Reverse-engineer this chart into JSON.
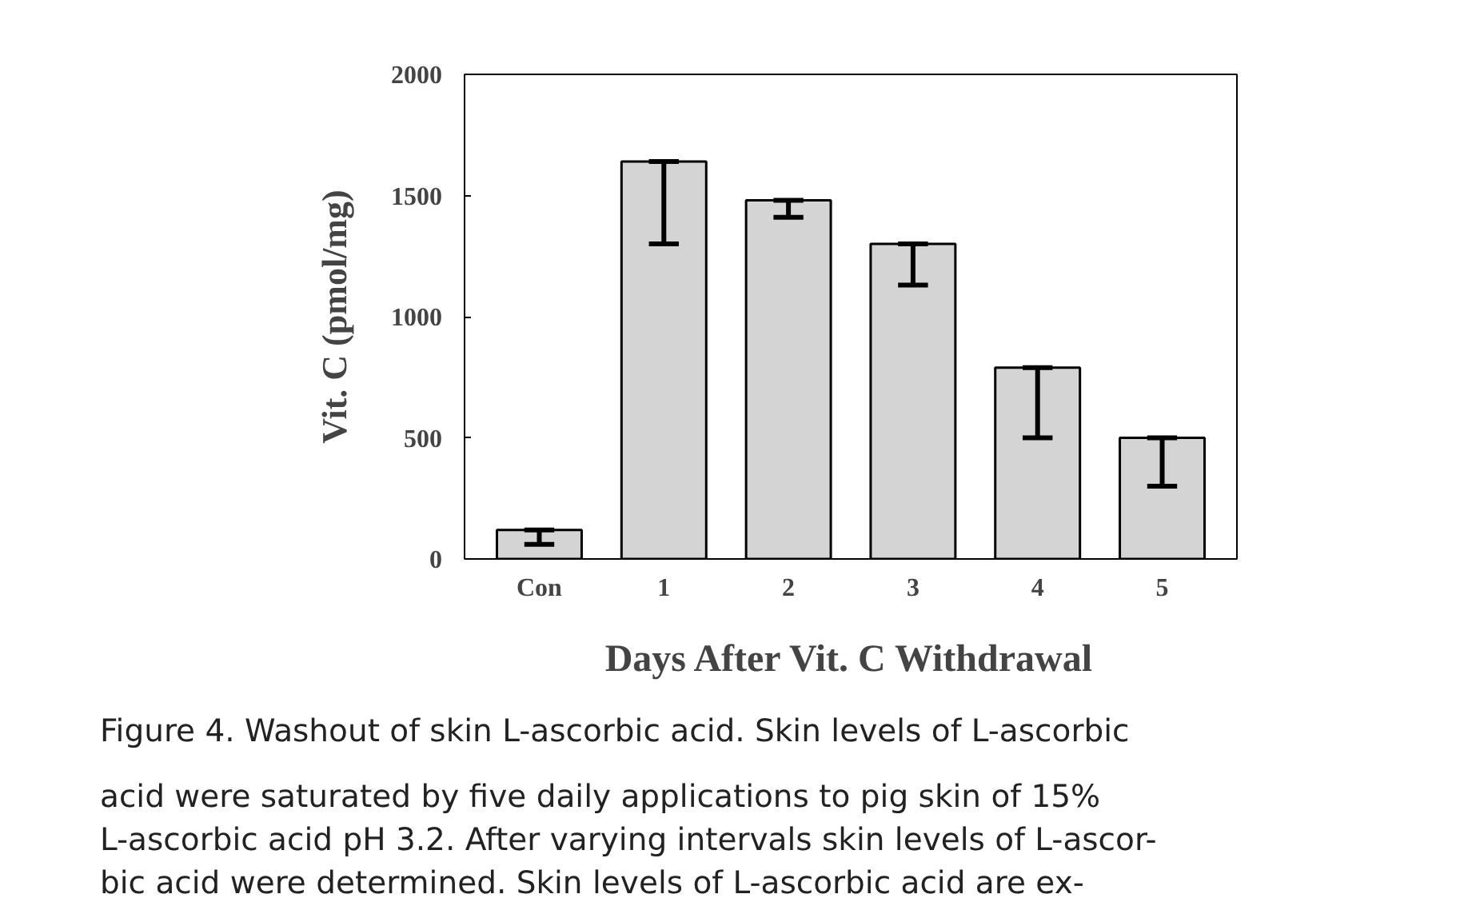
{
  "chart_data": {
    "type": "bar",
    "xlabel": "Days After Vit. C Withdrawal",
    "ylabel": "Vit. C (pmol/mg)",
    "categories": [
      "Con",
      "1",
      "2",
      "3",
      "4",
      "5"
    ],
    "values": [
      120,
      1640,
      1480,
      1300,
      790,
      500
    ],
    "errors": [
      [
        60,
        120
      ],
      [
        1300,
        1640
      ],
      [
        1410,
        1480
      ],
      [
        1130,
        1300
      ],
      [
        500,
        790
      ],
      [
        300,
        500
      ]
    ],
    "color": "#d4d4d4",
    "ylim": [
      0,
      2000
    ],
    "yticks": [
      0,
      500,
      1000,
      1500,
      2000
    ],
    "grid": false,
    "annotations": [
      "Figure 4. Washout of skin L-ascorbic acid. Skin levels of L-ascorbic",
      "acid were saturated by five daily applications to pig skin of 15%",
      "L-ascorbic acid pH 3.2. After varying intervals skin levels of L-ascor-",
      "bic acid were determined. Skin levels of L-ascorbic acid are ex-"
    ]
  }
}
